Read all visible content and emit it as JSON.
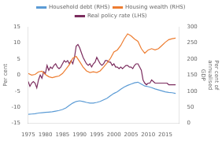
{
  "chart_data": {
    "type": "line",
    "ylabel": "Per cent",
    "y2label": "Per cent of\nannualised\nGDP",
    "xlim": [
      1975,
      2019
    ],
    "xticks": [
      1975,
      1980,
      1985,
      1990,
      1995,
      2000,
      2005,
      2010,
      2015
    ],
    "ylim": [
      -15,
      15
    ],
    "yticks": [
      -15,
      -10,
      -5,
      0,
      5,
      10,
      15
    ],
    "y2lim": [
      0,
      300
    ],
    "y2ticks": [
      0,
      50,
      100,
      150,
      200,
      250,
      300
    ],
    "grid": false,
    "legend": "top",
    "series": [
      {
        "name": "Household debt (RHS)",
        "color": "#5B9BD5",
        "axis": "y2",
        "x": [
          1975,
          1976,
          1977,
          1978,
          1979,
          1980,
          1981,
          1982,
          1983,
          1984,
          1985,
          1986,
          1987,
          1988,
          1989,
          1990,
          1991,
          1992,
          1993,
          1994,
          1995,
          1996,
          1997,
          1998,
          1999,
          2000,
          2001,
          2002,
          2003,
          2004,
          2005,
          2006,
          2007,
          2008,
          2009,
          2010,
          2011,
          2012,
          2013,
          2014,
          2015,
          2016,
          2017,
          2018
        ],
        "values": [
          28,
          29,
          30,
          32,
          33,
          34,
          35,
          36,
          38,
          40,
          43,
          48,
          56,
          63,
          68,
          70,
          68,
          65,
          63,
          63,
          65,
          68,
          73,
          78,
          86,
          93,
          98,
          106,
          113,
          118,
          122,
          126,
          128,
          122,
          116,
          114,
          111,
          107,
          104,
          101,
          98,
          96,
          95,
          93
        ]
      },
      {
        "name": "Housing wealth (RHS)",
        "color": "#ED7D31",
        "axis": "y2",
        "x": [
          1975,
          1976,
          1977,
          1978,
          1979,
          1980,
          1981,
          1982,
          1983,
          1984,
          1985,
          1986,
          1987,
          1988,
          1989,
          1990,
          1991,
          1992,
          1993,
          1994,
          1995,
          1996,
          1997,
          1998,
          1999,
          2000,
          2001,
          2002,
          2003,
          2004,
          2005,
          2006,
          2007,
          2008,
          2009,
          2010,
          2011,
          2012,
          2013,
          2014,
          2015,
          2016,
          2017,
          2018
        ],
        "values": [
          155,
          150,
          152,
          160,
          162,
          152,
          145,
          142,
          145,
          147,
          155,
          168,
          182,
          202,
          208,
          192,
          175,
          163,
          158,
          160,
          158,
          163,
          175,
          188,
          202,
          222,
          228,
          242,
          262,
          278,
          272,
          262,
          255,
          232,
          218,
          228,
          232,
          228,
          232,
          242,
          252,
          260,
          263,
          265
        ]
      },
      {
        "name": "Real policy rate (LHS)",
        "color": "#7B2C5E",
        "axis": "y",
        "x": [
          1975,
          1975.5,
          1976,
          1976.5,
          1977,
          1977.5,
          1978,
          1978.5,
          1979,
          1979.5,
          1980,
          1980.5,
          1981,
          1981.5,
          1982,
          1982.5,
          1983,
          1983.5,
          1984,
          1984.5,
          1985,
          1985.5,
          1986,
          1986.5,
          1987,
          1987.5,
          1988,
          1988.5,
          1989,
          1989.5,
          1990,
          1990.5,
          1991,
          1991.5,
          1992,
          1992.5,
          1993,
          1993.5,
          1994,
          1994.5,
          1995,
          1995.5,
          1996,
          1996.5,
          1997,
          1997.5,
          1998,
          1998.5,
          1999,
          1999.5,
          2000,
          2000.5,
          2001,
          2001.5,
          2002,
          2002.5,
          2003,
          2003.5,
          2004,
          2004.5,
          2005,
          2005.5,
          2006,
          2006.5,
          2007,
          2007.5,
          2008,
          2008.5,
          2009,
          2009.5,
          2010,
          2010.5,
          2011,
          2011.5,
          2012,
          2012.5,
          2013,
          2013.5,
          2014,
          2014.5,
          2015,
          2015.5,
          2016,
          2016.5,
          2017,
          2017.5,
          2018
        ],
        "values": [
          -2.0,
          -3.5,
          -2.5,
          -2.0,
          -2.5,
          -4.0,
          -1.5,
          0.0,
          -1.0,
          1.0,
          0.5,
          3.0,
          1.5,
          2.5,
          2.0,
          3.0,
          3.5,
          2.5,
          2.0,
          2.5,
          3.5,
          4.5,
          4.0,
          4.5,
          3.5,
          4.5,
          3.5,
          5.5,
          9.0,
          9.5,
          8.5,
          7.0,
          5.5,
          4.5,
          3.5,
          3.0,
          3.5,
          2.5,
          3.5,
          4.0,
          5.5,
          4.5,
          3.5,
          3.0,
          3.5,
          4.5,
          4.5,
          4.0,
          4.0,
          3.0,
          3.5,
          2.5,
          2.5,
          2.0,
          2.5,
          2.0,
          2.5,
          3.0,
          3.0,
          2.5,
          2.5,
          2.0,
          3.0,
          3.5,
          3.5,
          2.5,
          1.5,
          -1.5,
          -2.5,
          -3.0,
          -2.5,
          -2.5,
          -1.5,
          -2.0,
          -2.5,
          -2.5,
          -2.5,
          -2.5,
          -2.5,
          -2.5,
          -2.5,
          -2.5,
          -3.0,
          -3.0,
          -3.0,
          -3.0,
          -3.0
        ]
      }
    ]
  }
}
